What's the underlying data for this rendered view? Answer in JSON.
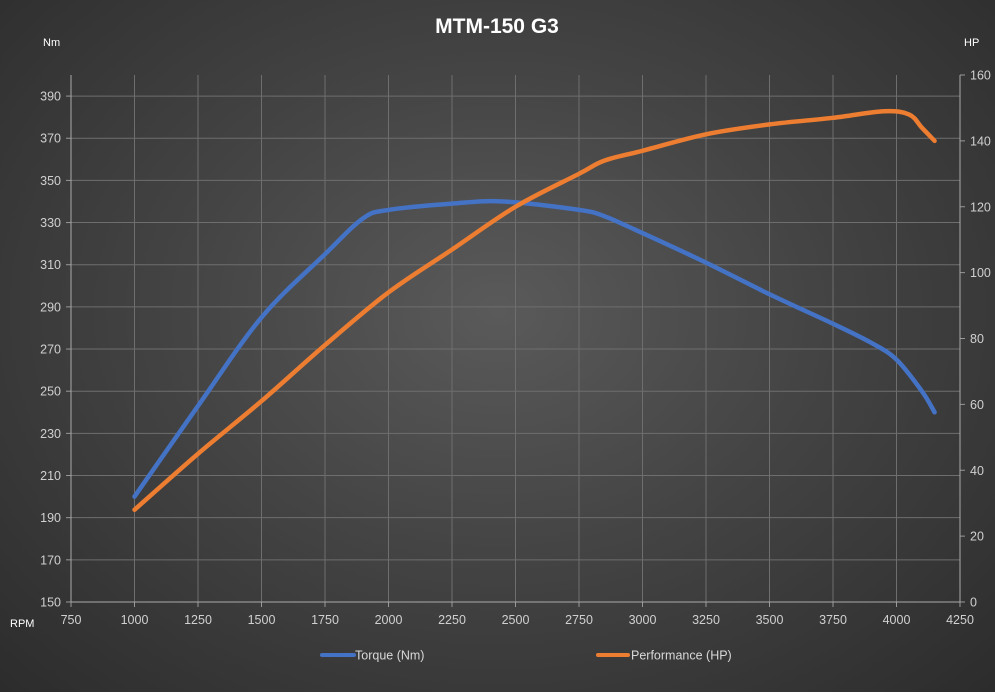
{
  "chart_data": {
    "type": "line",
    "title": "MTM-150 G3",
    "xlabel": "RPM",
    "ylabel_left": "Nm",
    "ylabel_right": "HP",
    "xlim": [
      750,
      4250
    ],
    "xticks": [
      750,
      1000,
      1250,
      1500,
      1750,
      2000,
      2250,
      2500,
      2750,
      3000,
      3250,
      3500,
      3750,
      4000,
      4250
    ],
    "ylim_left": [
      150,
      400
    ],
    "yticks_left": [
      150,
      170,
      190,
      210,
      230,
      250,
      270,
      290,
      310,
      330,
      350,
      370,
      390
    ],
    "ylim_right": [
      0,
      160
    ],
    "yticks_right": [
      0,
      20,
      40,
      60,
      80,
      100,
      120,
      140,
      160
    ],
    "grid": true,
    "legend_position": "bottom",
    "series": [
      {
        "name": "Torque (Nm)",
        "axis": "left",
        "color": "#4472c4",
        "x": [
          1000,
          1250,
          1500,
          1750,
          1900,
          2000,
          2250,
          2450,
          2750,
          2850,
          3000,
          3250,
          3500,
          3750,
          3900,
          4000,
          4100,
          4150
        ],
        "y": [
          200,
          243,
          285,
          315,
          332,
          336,
          339,
          340,
          336,
          333,
          325,
          311,
          296,
          282,
          273,
          265,
          250,
          240
        ]
      },
      {
        "name": "Performance (HP)",
        "axis": "right",
        "color": "#ed7d31",
        "x": [
          1000,
          1250,
          1500,
          1750,
          2000,
          2250,
          2500,
          2750,
          2850,
          3000,
          3250,
          3500,
          3750,
          3950,
          4050,
          4100,
          4150
        ],
        "y": [
          28,
          45,
          61,
          78,
          94,
          107,
          120,
          130,
          134,
          137,
          142,
          145,
          147,
          149,
          148,
          144,
          140
        ]
      }
    ]
  }
}
